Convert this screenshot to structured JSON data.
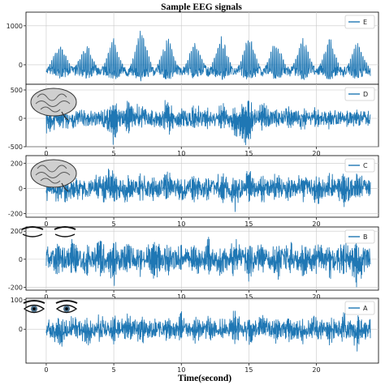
{
  "chart_data": {
    "type": "line",
    "title": "Sample EEG signals",
    "xlabel": "Time(second)",
    "series_color": "#1f77b4",
    "grid": true,
    "legend_position": "top-right",
    "xlim": [
      -1.5,
      24.6
    ],
    "panels": [
      {
        "name": "E",
        "ylim": [
          -500,
          1350
        ],
        "yticks": [
          0,
          1000
        ],
        "illustration": "none",
        "x_start": 0.0,
        "x_end": 24.0,
        "baseline": 0,
        "amplitude": 500,
        "spikiness": "high",
        "samples": [
          [
            0,
            -180
          ],
          [
            1,
            520
          ],
          [
            2,
            -160
          ],
          [
            3,
            480
          ],
          [
            4,
            -250
          ],
          [
            5,
            600
          ],
          [
            6,
            -300
          ],
          [
            7,
            780
          ],
          [
            8,
            -200
          ],
          [
            9,
            620
          ],
          [
            10,
            -280
          ],
          [
            11,
            560
          ],
          [
            12,
            -220
          ],
          [
            13,
            650
          ],
          [
            14,
            -310
          ],
          [
            15,
            700
          ],
          [
            16,
            -240
          ],
          [
            17,
            590
          ],
          [
            18,
            -260
          ],
          [
            19,
            630
          ],
          [
            20,
            -230
          ],
          [
            21,
            610
          ],
          [
            22,
            -300
          ],
          [
            23,
            520
          ],
          [
            24,
            -150
          ]
        ]
      },
      {
        "name": "D",
        "ylim": [
          -500,
          600
        ],
        "yticks": [
          -500,
          0,
          500
        ],
        "illustration": "brain",
        "x_start": 0.0,
        "x_end": 24.0,
        "baseline": 0,
        "amplitude": 160,
        "spikiness": "medium",
        "samples": [
          [
            0,
            -200
          ],
          [
            1,
            -120
          ],
          [
            2,
            -80
          ],
          [
            3,
            -60
          ],
          [
            4,
            60
          ],
          [
            5,
            -420
          ],
          [
            6,
            280
          ],
          [
            7,
            150
          ],
          [
            8,
            -100
          ],
          [
            9,
            360
          ],
          [
            10,
            -200
          ],
          [
            11,
            250
          ],
          [
            12,
            -150
          ],
          [
            13,
            220
          ],
          [
            14,
            -300
          ],
          [
            15,
            -420
          ],
          [
            16,
            300
          ],
          [
            17,
            -140
          ],
          [
            18,
            180
          ],
          [
            19,
            -160
          ],
          [
            20,
            150
          ],
          [
            21,
            -120
          ],
          [
            22,
            100
          ],
          [
            23,
            -90
          ],
          [
            24,
            80
          ]
        ]
      },
      {
        "name": "C",
        "ylim": [
          -230,
          260
        ],
        "yticks": [
          -200,
          0,
          200
        ],
        "illustration": "brain",
        "x_start": 0.0,
        "x_end": 24.0,
        "baseline": 0,
        "amplitude": 80,
        "spikiness": "medium",
        "samples": [
          [
            0,
            -90
          ],
          [
            1,
            -60
          ],
          [
            2,
            -40
          ],
          [
            3,
            -30
          ],
          [
            4,
            90
          ],
          [
            5,
            150
          ],
          [
            6,
            -120
          ],
          [
            7,
            100
          ],
          [
            8,
            -90
          ],
          [
            9,
            120
          ],
          [
            10,
            -100
          ],
          [
            11,
            90
          ],
          [
            12,
            -80
          ],
          [
            13,
            150
          ],
          [
            14,
            -150
          ],
          [
            15,
            170
          ],
          [
            16,
            -110
          ],
          [
            17,
            100
          ],
          [
            18,
            -80
          ],
          [
            19,
            110
          ],
          [
            20,
            -140
          ],
          [
            21,
            120
          ],
          [
            22,
            -190
          ],
          [
            23,
            130
          ],
          [
            24,
            -60
          ]
        ]
      },
      {
        "name": "B",
        "ylim": [
          -220,
          230
        ],
        "yticks": [
          -200,
          0,
          200
        ],
        "illustration": "closed-eyes",
        "x_start": 0.0,
        "x_end": 24.0,
        "baseline": 0,
        "amplitude": 85,
        "spikiness": "low",
        "samples": [
          [
            0,
            60
          ],
          [
            1,
            -120
          ],
          [
            2,
            110
          ],
          [
            3,
            -100
          ],
          [
            4,
            130
          ],
          [
            5,
            -150
          ],
          [
            6,
            100
          ],
          [
            7,
            -90
          ],
          [
            8,
            180
          ],
          [
            9,
            -110
          ],
          [
            10,
            90
          ],
          [
            11,
            -100
          ],
          [
            12,
            120
          ],
          [
            13,
            -110
          ],
          [
            14,
            150
          ],
          [
            15,
            -130
          ],
          [
            16,
            110
          ],
          [
            17,
            -120
          ],
          [
            18,
            100
          ],
          [
            19,
            -100
          ],
          [
            20,
            120
          ],
          [
            21,
            -110
          ],
          [
            22,
            140
          ],
          [
            23,
            -160
          ],
          [
            24,
            60
          ]
        ]
      },
      {
        "name": "A",
        "ylim": [
          -115,
          105
        ],
        "yticks": [
          0,
          100
        ],
        "illustration": "open-eyes",
        "x_start": 0.0,
        "x_end": 24.0,
        "baseline": 0,
        "amplitude": 35,
        "spikiness": "low",
        "samples": [
          [
            0,
            30
          ],
          [
            1,
            -60
          ],
          [
            2,
            40
          ],
          [
            3,
            -45
          ],
          [
            4,
            35
          ],
          [
            5,
            -40
          ],
          [
            6,
            45
          ],
          [
            7,
            -50
          ],
          [
            8,
            40
          ],
          [
            9,
            -35
          ],
          [
            10,
            50
          ],
          [
            11,
            -45
          ],
          [
            12,
            40
          ],
          [
            13,
            -40
          ],
          [
            14,
            55
          ],
          [
            15,
            -50
          ],
          [
            16,
            45
          ],
          [
            17,
            -35
          ],
          [
            18,
            40
          ],
          [
            19,
            -45
          ],
          [
            20,
            50
          ],
          [
            21,
            -40
          ],
          [
            22,
            45
          ],
          [
            23,
            -60
          ],
          [
            24,
            20
          ]
        ]
      }
    ],
    "xticks": [
      0,
      5,
      10,
      15,
      20
    ]
  }
}
